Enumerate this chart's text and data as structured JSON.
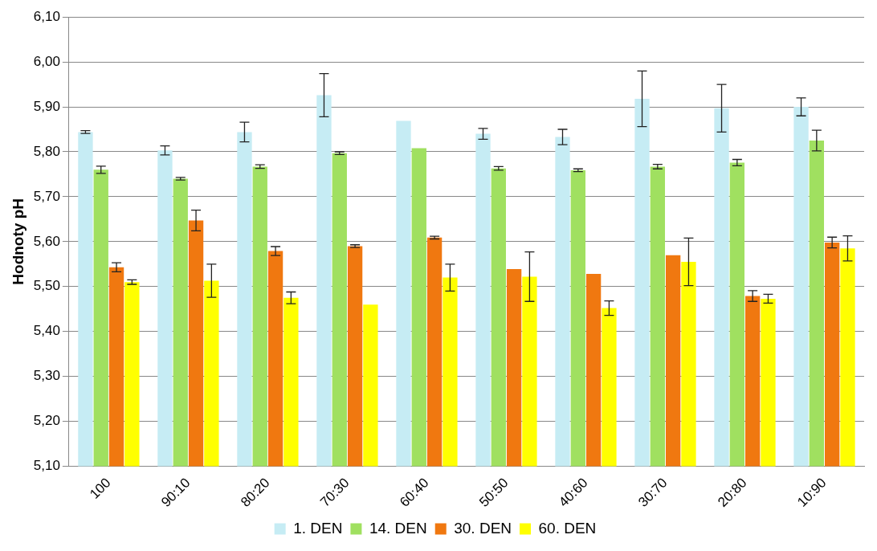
{
  "chart_data": {
    "type": "bar",
    "ylabel": "Hodnoty pH",
    "categories": [
      "100",
      "90:10",
      "80:20",
      "70:30",
      "60:40",
      "50:50",
      "40:60",
      "30:70",
      "20:80",
      "10:90"
    ],
    "series": [
      {
        "name": "1. DEN",
        "color": "#c6ecf4",
        "values": [
          5.844,
          5.803,
          5.844,
          5.926,
          5.869,
          5.84,
          5.833,
          5.918,
          5.897,
          5.9
        ],
        "errors": [
          0.003,
          0.01,
          0.022,
          0.048,
          null,
          0.012,
          0.017,
          0.062,
          0.053,
          0.02
        ]
      },
      {
        "name": "14. DEN",
        "color": "#a0e060",
        "values": [
          5.76,
          5.74,
          5.767,
          5.797,
          5.808,
          5.763,
          5.759,
          5.767,
          5.776,
          5.825
        ],
        "errors": [
          0.008,
          0.003,
          0.004,
          0.003,
          null,
          0.004,
          0.003,
          0.005,
          0.007,
          0.023
        ]
      },
      {
        "name": "30. DEN",
        "color": "#f07810",
        "values": [
          5.543,
          5.647,
          5.579,
          5.59,
          5.609,
          5.539,
          5.528,
          5.57,
          5.479,
          5.598
        ],
        "errors": [
          0.01,
          0.023,
          0.01,
          0.003,
          0.003,
          null,
          null,
          null,
          0.012,
          0.012
        ]
      },
      {
        "name": "60. DEN",
        "color": "#ffff00",
        "values": [
          5.51,
          5.513,
          5.475,
          5.46,
          5.52,
          5.522,
          5.452,
          5.555,
          5.473,
          5.585
        ],
        "errors": [
          0.005,
          0.037,
          0.013,
          null,
          0.03,
          0.055,
          0.016,
          0.053,
          0.01,
          0.028
        ]
      }
    ],
    "ylim": [
      5.1,
      6.1
    ],
    "yticks": [
      {
        "value": 5.1,
        "label": "5,10"
      },
      {
        "value": 5.2,
        "label": "5,20"
      },
      {
        "value": 5.3,
        "label": "5,30"
      },
      {
        "value": 5.4,
        "label": "5,40"
      },
      {
        "value": 5.5,
        "label": "5,50"
      },
      {
        "value": 5.6,
        "label": "5,60"
      },
      {
        "value": 5.7,
        "label": "5,70"
      },
      {
        "value": 5.8,
        "label": "5,80"
      },
      {
        "value": 5.9,
        "label": "5,90"
      },
      {
        "value": 6.0,
        "label": "6,00"
      },
      {
        "value": 6.1,
        "label": "6,10"
      }
    ],
    "grid": "y",
    "legend": "bottom"
  }
}
